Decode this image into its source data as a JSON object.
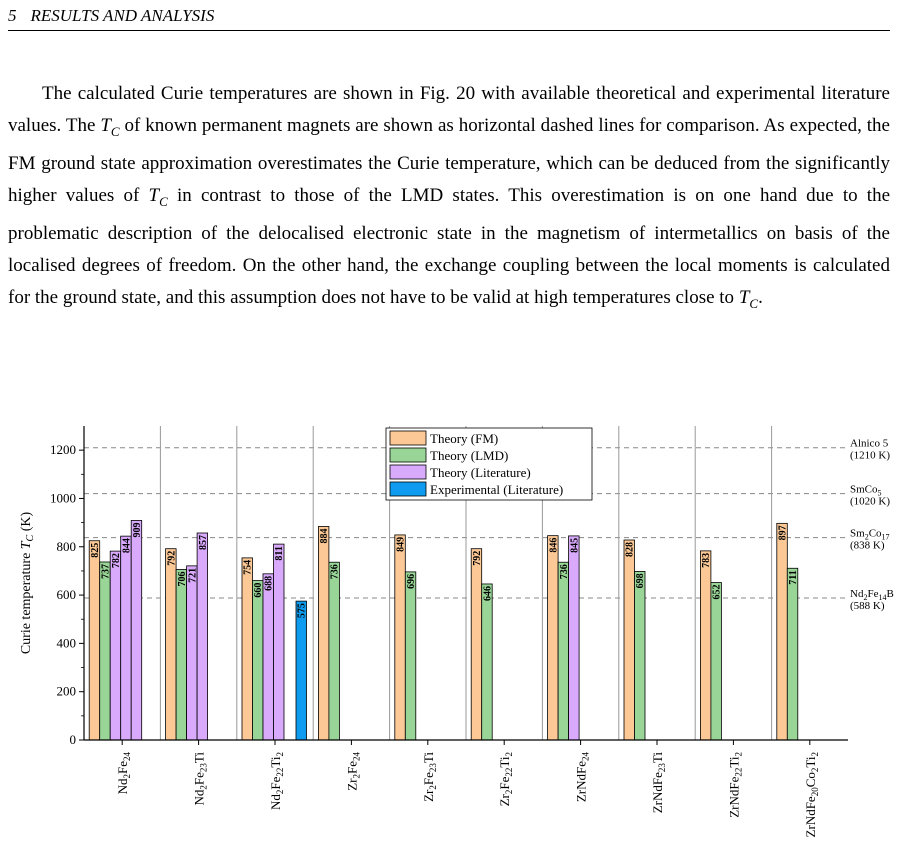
{
  "header": {
    "section_number": "5",
    "section_title": "RESULTS AND ANALYSIS"
  },
  "paragraph": {
    "s1": "The calculated Curie temperatures are shown in Fig. 20 with available theoretical and experimental literature values. The ",
    "s2": " of known permanent magnets are shown as horizontal dashed lines for comparison. As expected, the FM ground state approximation overestimates the Curie temperature, which can be deduced from the significantly higher values of ",
    "s3": " in contrast to those of the LMD states. This overestimation is on one hand due to the problematic description of the delocalised electronic state in the magnetism of intermetallics on basis of the localised degrees of freedom. On the other hand, the exchange coupling between the local moments is calculated for the ground state, and this assumption does not have to be valid at high temperatures close to ",
    "s4": ".",
    "tc_symbol": "T",
    "tc_sub": "C"
  },
  "chart_data": {
    "type": "bar",
    "ylabel": "Curie temperature T_C (K)",
    "ylim": [
      0,
      1300
    ],
    "yticks": [
      0,
      200,
      400,
      600,
      800,
      1000,
      1200
    ],
    "legend_position": "top-center",
    "categories": [
      {
        "base": "Nd",
        "s1": "2",
        "mid": "Fe",
        "s2": "24",
        "tail": "",
        "s3": ""
      },
      {
        "base": "Nd",
        "s1": "2",
        "mid": "Fe",
        "s2": "23",
        "tail": "Ti",
        "s3": ""
      },
      {
        "base": "Nd",
        "s1": "2",
        "mid": "Fe",
        "s2": "22",
        "tail": "Ti",
        "s3": "2"
      },
      {
        "base": "Zr",
        "s1": "2",
        "mid": "Fe",
        "s2": "24",
        "tail": "",
        "s3": ""
      },
      {
        "base": "Zr",
        "s1": "2",
        "mid": "Fe",
        "s2": "23",
        "tail": "Ti",
        "s3": ""
      },
      {
        "base": "Zr",
        "s1": "2",
        "mid": "Fe",
        "s2": "22",
        "tail": "Ti",
        "s3": "2"
      },
      {
        "base": "ZrNdFe",
        "s1": "24",
        "mid": "",
        "s2": "",
        "tail": "",
        "s3": ""
      },
      {
        "base": "ZrNdFe",
        "s1": "23",
        "mid": "Ti",
        "s2": "",
        "tail": "",
        "s3": ""
      },
      {
        "base": "ZrNdFe",
        "s1": "22",
        "mid": "Ti",
        "s2": "2",
        "tail": "",
        "s3": ""
      },
      {
        "base": "ZrNdFe",
        "s1": "20",
        "mid": "Co",
        "s2": "2",
        "tail": "Ti",
        "s3": "2"
      }
    ],
    "series": [
      {
        "name": "Theory (FM)",
        "color": "#fcc996",
        "values": [
          825,
          792,
          754,
          884,
          849,
          792,
          846,
          828,
          783,
          897
        ]
      },
      {
        "name": "Theory (LMD)",
        "color": "#98d597",
        "values": [
          737,
          706,
          660,
          736,
          696,
          646,
          736,
          698,
          652,
          711
        ]
      },
      {
        "name": "Theory (Literature)",
        "color": "#d9a9fc",
        "values": [
          [
            782,
            844,
            909
          ],
          [
            721,
            857
          ],
          [
            688,
            811
          ],
          [],
          [],
          [],
          [
            845
          ],
          [],
          [],
          []
        ]
      },
      {
        "name": "Experimental (Literature)",
        "color": "#0f9cf0",
        "values": [
          null,
          null,
          575,
          null,
          null,
          null,
          null,
          null,
          null,
          null
        ]
      }
    ],
    "reference_lines": [
      {
        "value": 1210,
        "label": "Alnico 5",
        "sub_label": "(1210 K)"
      },
      {
        "value": 1020,
        "label": "SmCo",
        "label_sub": "5",
        "sub_label": "(1020 K)"
      },
      {
        "value": 838,
        "label": "Sm",
        "label_sub": "2",
        "label_mid": "Co",
        "label_sub2": "17",
        "sub_label": "(838 K)"
      },
      {
        "value": 588,
        "label": "Nd",
        "label_sub": "2",
        "label_mid": "Fe",
        "label_sub2": "14",
        "label_tail": "B",
        "sub_label": "(588 K)"
      }
    ]
  }
}
